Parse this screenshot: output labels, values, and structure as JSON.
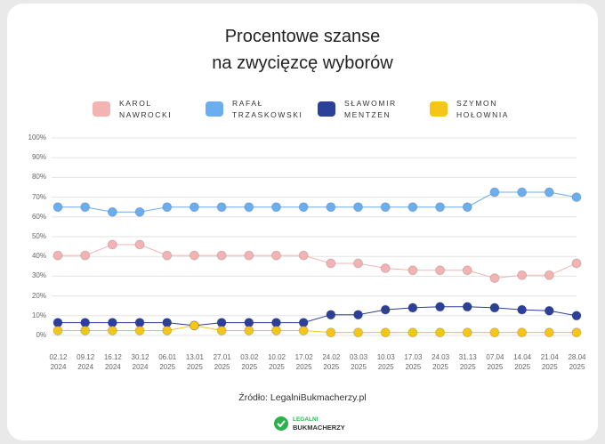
{
  "chart_data": {
    "type": "line",
    "title": [
      "Procentowe szanse",
      "na zwycięzcę wyborów"
    ],
    "categories": [
      "02.12 2024",
      "09.12 2024",
      "16.12 2024",
      "30.12 2024",
      "06.01 2025",
      "13.01 2025",
      "27.01 2025",
      "03.02 2025",
      "10.02 2025",
      "17.02 2025",
      "24.02 2025",
      "03.03 2025",
      "10.03 2025",
      "17.03 2025",
      "24.03 2025",
      "31.13 2025",
      "07.04 2025",
      "14.04 2025",
      "21.04 2025",
      "28.04 2025"
    ],
    "series": [
      {
        "name": "KAROL NAWROCKI",
        "color": "#f4b3b3",
        "values": [
          40.5,
          40.5,
          46,
          46,
          40.5,
          40.5,
          40.5,
          40.5,
          40.5,
          40.5,
          36.5,
          36.5,
          34,
          33,
          33,
          33,
          29,
          30.5,
          30.5,
          36.5
        ]
      },
      {
        "name": "RAFAŁ TRZASKOWSKI",
        "color": "#6aaef0",
        "values": [
          65,
          65,
          62.5,
          62.5,
          65,
          65,
          65,
          65,
          65,
          65,
          65,
          65,
          65,
          65,
          65,
          65,
          72.5,
          72.5,
          72.5,
          70
        ]
      },
      {
        "name": "SŁAWOMIR MENTZEN",
        "color": "#2c3f99",
        "values": [
          6.5,
          6.5,
          6.5,
          6.5,
          6.5,
          5,
          6.5,
          6.5,
          6.5,
          6.5,
          10.5,
          10.5,
          13,
          14,
          14.5,
          14.5,
          14,
          13,
          12.5,
          10
        ]
      },
      {
        "name": "SZYMON HOŁOWNIA",
        "color": "#f5c518",
        "values": [
          2.5,
          2.5,
          2.5,
          2.5,
          2.5,
          5,
          2.5,
          2.5,
          2.5,
          2.5,
          1.5,
          1.5,
          1.5,
          1.5,
          1.5,
          1.5,
          1.5,
          1.5,
          1.5,
          1.5
        ]
      }
    ],
    "ylim": [
      0,
      100
    ],
    "yticks": [
      {
        "value": 0,
        "label": "0%"
      },
      {
        "value": 10,
        "label": "10%"
      },
      {
        "value": 20,
        "label": "20%"
      },
      {
        "value": 30,
        "label": "30%"
      },
      {
        "value": 40,
        "label": "40%"
      },
      {
        "value": 50,
        "label": "50%"
      },
      {
        "value": 60,
        "label": "60%"
      },
      {
        "value": 70,
        "label": "70%"
      },
      {
        "value": 80,
        "label": "80%"
      },
      {
        "value": 90,
        "label": "90%"
      },
      {
        "value": 100,
        "label": "100%"
      }
    ],
    "grid": true,
    "legend": "top",
    "source": "Źródło: LegalniBukmacherzy.pl",
    "logo": [
      "LEGALNI",
      "BUKMACHERZY"
    ]
  }
}
